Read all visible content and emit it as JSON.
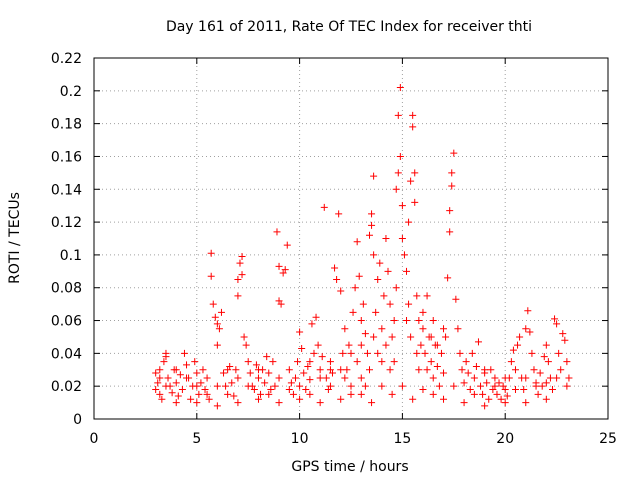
{
  "chart_data": {
    "type": "scatter",
    "title": "Day 161 of 2011, Rate Of TEC Index for receiver thti",
    "xlabel": "GPS time / hours",
    "ylabel": "ROTI / TECUs",
    "xlim": [
      0,
      25
    ],
    "ylim": [
      0,
      0.22
    ],
    "x_ticks": [
      0,
      5,
      10,
      15,
      20,
      25
    ],
    "y_ticks": [
      0,
      0.02,
      0.04,
      0.06,
      0.08,
      0.1,
      0.12,
      0.14,
      0.16,
      0.18,
      0.2,
      0.22
    ],
    "x_tick_labels": [
      "0",
      "5",
      "10",
      "15",
      "20",
      "25"
    ],
    "y_tick_labels": [
      "0",
      "0.02",
      "0.04",
      "0.06",
      "0.08",
      "0.1",
      "0.12",
      "0.14",
      "0.16",
      "0.18",
      "0.2",
      "0.22"
    ],
    "grid": true,
    "marker": "+",
    "marker_color": "#ff0000",
    "series": [
      {
        "name": "ROTI",
        "points": [
          [
            3.0,
            0.028
          ],
          [
            3.0,
            0.018
          ],
          [
            3.1,
            0.022
          ],
          [
            3.2,
            0.015
          ],
          [
            3.2,
            0.03
          ],
          [
            3.3,
            0.012
          ],
          [
            3.4,
            0.035
          ],
          [
            3.5,
            0.04
          ],
          [
            3.5,
            0.038
          ],
          [
            3.6,
            0.025
          ],
          [
            3.7,
            0.02
          ],
          [
            3.8,
            0.016
          ],
          [
            3.9,
            0.03
          ],
          [
            4.0,
            0.022
          ],
          [
            4.1,
            0.014
          ],
          [
            4.2,
            0.027
          ],
          [
            4.3,
            0.018
          ],
          [
            4.4,
            0.04
          ],
          [
            4.5,
            0.033
          ],
          [
            4.6,
            0.025
          ],
          [
            4.7,
            0.012
          ],
          [
            4.8,
            0.02
          ],
          [
            4.9,
            0.035
          ],
          [
            5.0,
            0.028
          ],
          [
            5.1,
            0.015
          ],
          [
            5.2,
            0.022
          ],
          [
            5.3,
            0.03
          ],
          [
            5.4,
            0.018
          ],
          [
            5.5,
            0.025
          ],
          [
            5.6,
            0.012
          ],
          [
            5.7,
            0.101
          ],
          [
            5.7,
            0.087
          ],
          [
            5.8,
            0.07
          ],
          [
            5.9,
            0.062
          ],
          [
            6.0,
            0.058
          ],
          [
            6.0,
            0.045
          ],
          [
            6.1,
            0.055
          ],
          [
            6.2,
            0.065
          ],
          [
            6.3,
            0.028
          ],
          [
            6.4,
            0.02
          ],
          [
            6.5,
            0.015
          ],
          [
            6.6,
            0.032
          ],
          [
            6.7,
            0.022
          ],
          [
            6.8,
            0.014
          ],
          [
            6.9,
            0.03
          ],
          [
            7.0,
            0.085
          ],
          [
            7.0,
            0.075
          ],
          [
            7.1,
            0.095
          ],
          [
            7.2,
            0.099
          ],
          [
            7.2,
            0.088
          ],
          [
            7.3,
            0.05
          ],
          [
            7.4,
            0.045
          ],
          [
            7.5,
            0.035
          ],
          [
            7.6,
            0.028
          ],
          [
            7.7,
            0.02
          ],
          [
            7.8,
            0.018
          ],
          [
            7.9,
            0.033
          ],
          [
            8.0,
            0.025
          ],
          [
            8.1,
            0.015
          ],
          [
            8.2,
            0.03
          ],
          [
            8.3,
            0.022
          ],
          [
            8.4,
            0.038
          ],
          [
            8.5,
            0.028
          ],
          [
            8.6,
            0.018
          ],
          [
            8.7,
            0.035
          ],
          [
            8.8,
            0.02
          ],
          [
            8.9,
            0.114
          ],
          [
            9.0,
            0.093
          ],
          [
            9.0,
            0.072
          ],
          [
            9.1,
            0.07
          ],
          [
            9.2,
            0.089
          ],
          [
            9.3,
            0.091
          ],
          [
            9.4,
            0.106
          ],
          [
            9.5,
            0.03
          ],
          [
            9.6,
            0.022
          ],
          [
            9.7,
            0.015
          ],
          [
            9.8,
            0.025
          ],
          [
            9.9,
            0.035
          ],
          [
            10.0,
            0.053
          ],
          [
            10.1,
            0.043
          ],
          [
            10.2,
            0.028
          ],
          [
            10.3,
            0.018
          ],
          [
            10.4,
            0.032
          ],
          [
            10.5,
            0.024
          ],
          [
            10.6,
            0.058
          ],
          [
            10.7,
            0.04
          ],
          [
            10.8,
            0.062
          ],
          [
            10.9,
            0.045
          ],
          [
            11.0,
            0.03
          ],
          [
            11.1,
            0.038
          ],
          [
            11.2,
            0.129
          ],
          [
            11.3,
            0.025
          ],
          [
            11.4,
            0.018
          ],
          [
            11.5,
            0.035
          ],
          [
            11.6,
            0.028
          ],
          [
            11.7,
            0.092
          ],
          [
            11.8,
            0.085
          ],
          [
            11.9,
            0.125
          ],
          [
            12.0,
            0.078
          ],
          [
            12.1,
            0.04
          ],
          [
            12.2,
            0.055
          ],
          [
            12.3,
            0.03
          ],
          [
            12.4,
            0.045
          ],
          [
            12.5,
            0.02
          ],
          [
            12.6,
            0.065
          ],
          [
            12.7,
            0.08
          ],
          [
            12.8,
            0.108
          ],
          [
            12.9,
            0.087
          ],
          [
            13.0,
            0.06
          ],
          [
            13.0,
            0.045
          ],
          [
            13.1,
            0.07
          ],
          [
            13.2,
            0.052
          ],
          [
            13.3,
            0.04
          ],
          [
            13.4,
            0.112
          ],
          [
            13.5,
            0.125
          ],
          [
            13.5,
            0.118
          ],
          [
            13.6,
            0.148
          ],
          [
            13.6,
            0.1
          ],
          [
            13.7,
            0.065
          ],
          [
            13.8,
            0.085
          ],
          [
            13.9,
            0.095
          ],
          [
            14.0,
            0.055
          ],
          [
            14.1,
            0.075
          ],
          [
            14.2,
            0.11
          ],
          [
            14.3,
            0.09
          ],
          [
            14.4,
            0.07
          ],
          [
            14.5,
            0.05
          ],
          [
            14.6,
            0.035
          ],
          [
            14.7,
            0.14
          ],
          [
            14.8,
            0.15
          ],
          [
            14.8,
            0.185
          ],
          [
            14.9,
            0.202
          ],
          [
            14.9,
            0.16
          ],
          [
            15.0,
            0.13
          ],
          [
            15.0,
            0.11
          ],
          [
            15.1,
            0.1
          ],
          [
            15.2,
            0.09
          ],
          [
            15.3,
            0.12
          ],
          [
            15.4,
            0.145
          ],
          [
            15.5,
            0.185
          ],
          [
            15.5,
            0.178
          ],
          [
            15.6,
            0.15
          ],
          [
            15.6,
            0.132
          ],
          [
            15.7,
            0.075
          ],
          [
            15.8,
            0.06
          ],
          [
            15.9,
            0.045
          ],
          [
            16.0,
            0.055
          ],
          [
            16.1,
            0.04
          ],
          [
            16.2,
            0.03
          ],
          [
            16.3,
            0.05
          ],
          [
            16.4,
            0.035
          ],
          [
            16.5,
            0.025
          ],
          [
            16.6,
            0.045
          ],
          [
            16.7,
            0.032
          ],
          [
            16.8,
            0.02
          ],
          [
            16.9,
            0.04
          ],
          [
            17.0,
            0.028
          ],
          [
            17.1,
            0.05
          ],
          [
            17.2,
            0.086
          ],
          [
            17.3,
            0.114
          ],
          [
            17.3,
            0.127
          ],
          [
            17.4,
            0.142
          ],
          [
            17.4,
            0.15
          ],
          [
            17.5,
            0.162
          ],
          [
            17.6,
            0.073
          ],
          [
            17.7,
            0.055
          ],
          [
            17.8,
            0.04
          ],
          [
            17.9,
            0.03
          ],
          [
            18.0,
            0.022
          ],
          [
            18.1,
            0.035
          ],
          [
            18.2,
            0.028
          ],
          [
            18.3,
            0.018
          ],
          [
            18.4,
            0.04
          ],
          [
            18.5,
            0.025
          ],
          [
            18.6,
            0.032
          ],
          [
            18.7,
            0.047
          ],
          [
            18.8,
            0.02
          ],
          [
            18.9,
            0.015
          ],
          [
            19.0,
            0.028
          ],
          [
            19.1,
            0.022
          ],
          [
            19.2,
            0.012
          ],
          [
            19.3,
            0.03
          ],
          [
            19.4,
            0.018
          ],
          [
            19.5,
            0.025
          ],
          [
            19.6,
            0.015
          ],
          [
            19.7,
            0.022
          ],
          [
            19.8,
            0.012
          ],
          [
            19.9,
            0.02
          ],
          [
            20.0,
            0.018
          ],
          [
            20.1,
            0.014
          ],
          [
            20.2,
            0.025
          ],
          [
            20.3,
            0.035
          ],
          [
            20.4,
            0.042
          ],
          [
            20.5,
            0.03
          ],
          [
            20.6,
            0.045
          ],
          [
            20.7,
            0.05
          ],
          [
            20.8,
            0.025
          ],
          [
            20.9,
            0.018
          ],
          [
            21.0,
            0.055
          ],
          [
            21.1,
            0.066
          ],
          [
            21.2,
            0.053
          ],
          [
            21.3,
            0.04
          ],
          [
            21.4,
            0.03
          ],
          [
            21.5,
            0.022
          ],
          [
            21.6,
            0.015
          ],
          [
            21.7,
            0.028
          ],
          [
            21.8,
            0.02
          ],
          [
            21.9,
            0.038
          ],
          [
            22.0,
            0.045
          ],
          [
            22.1,
            0.035
          ],
          [
            22.2,
            0.025
          ],
          [
            22.3,
            0.018
          ],
          [
            22.4,
            0.061
          ],
          [
            22.5,
            0.058
          ],
          [
            22.6,
            0.04
          ],
          [
            22.7,
            0.03
          ],
          [
            22.8,
            0.052
          ],
          [
            22.9,
            0.048
          ],
          [
            23.0,
            0.035
          ],
          [
            23.1,
            0.025
          ],
          [
            13.8,
            0.04
          ],
          [
            14.0,
            0.035
          ],
          [
            14.2,
            0.045
          ],
          [
            14.4,
            0.03
          ],
          [
            13.6,
            0.05
          ],
          [
            13.4,
            0.03
          ],
          [
            13.2,
            0.02
          ],
          [
            14.6,
            0.06
          ],
          [
            14.7,
            0.08
          ],
          [
            15.2,
            0.06
          ],
          [
            15.3,
            0.07
          ],
          [
            15.4,
            0.05
          ],
          [
            15.7,
            0.04
          ],
          [
            15.8,
            0.03
          ],
          [
            16.0,
            0.065
          ],
          [
            16.2,
            0.075
          ],
          [
            16.4,
            0.05
          ],
          [
            16.5,
            0.06
          ],
          [
            16.7,
            0.045
          ],
          [
            17.0,
            0.055
          ],
          [
            12.0,
            0.03
          ],
          [
            12.2,
            0.025
          ],
          [
            12.5,
            0.04
          ],
          [
            12.8,
            0.035
          ],
          [
            11.5,
            0.02
          ],
          [
            11.0,
            0.025
          ],
          [
            10.5,
            0.035
          ],
          [
            10.0,
            0.02
          ],
          [
            9.5,
            0.018
          ],
          [
            9.0,
            0.025
          ],
          [
            8.5,
            0.015
          ],
          [
            8.0,
            0.03
          ],
          [
            7.5,
            0.02
          ],
          [
            7.0,
            0.025
          ],
          [
            6.5,
            0.03
          ],
          [
            6.0,
            0.02
          ],
          [
            5.5,
            0.015
          ],
          [
            5.0,
            0.02
          ],
          [
            4.5,
            0.025
          ],
          [
            4.0,
            0.03
          ],
          [
            3.5,
            0.02
          ],
          [
            3.2,
            0.025
          ],
          [
            18.5,
            0.015
          ],
          [
            19.0,
            0.03
          ],
          [
            19.5,
            0.02
          ],
          [
            20.0,
            0.025
          ],
          [
            20.5,
            0.018
          ],
          [
            21.0,
            0.025
          ],
          [
            21.5,
            0.02
          ],
          [
            22.0,
            0.022
          ],
          [
            22.5,
            0.025
          ],
          [
            23.0,
            0.02
          ],
          [
            14.5,
            0.015
          ],
          [
            15.0,
            0.02
          ],
          [
            15.5,
            0.012
          ],
          [
            16.0,
            0.018
          ],
          [
            13.0,
            0.015
          ],
          [
            13.5,
            0.01
          ],
          [
            12.0,
            0.012
          ],
          [
            11.0,
            0.01
          ],
          [
            10.0,
            0.012
          ],
          [
            9.0,
            0.01
          ],
          [
            8.0,
            0.012
          ],
          [
            7.0,
            0.01
          ],
          [
            6.0,
            0.008
          ],
          [
            5.0,
            0.01
          ],
          [
            4.0,
            0.01
          ],
          [
            17.0,
            0.012
          ],
          [
            18.0,
            0.01
          ],
          [
            19.0,
            0.008
          ],
          [
            20.0,
            0.01
          ],
          [
            21.0,
            0.01
          ],
          [
            22.0,
            0.012
          ],
          [
            16.5,
            0.015
          ],
          [
            17.5,
            0.02
          ],
          [
            14.0,
            0.02
          ],
          [
            13.0,
            0.025
          ],
          [
            12.5,
            0.015
          ],
          [
            11.5,
            0.03
          ],
          [
            10.5,
            0.015
          ]
        ]
      }
    ]
  }
}
